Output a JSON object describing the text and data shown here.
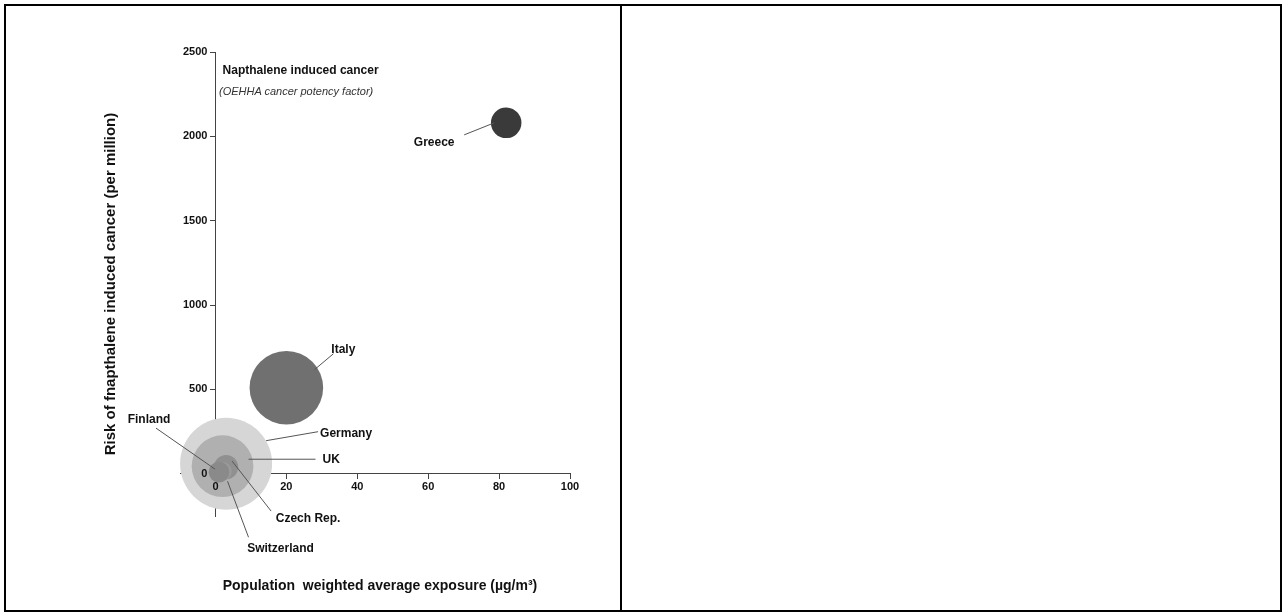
{
  "chart_data": {
    "type": "bubble",
    "title": "Napthalene induced cancer",
    "subtitle": "(OEHHA cancer potency factor)",
    "xlabel": "Population  weighted average exposure (µg/m³)",
    "ylabel": "Risk of fnapthalene induced cancer (per million)",
    "series": [
      {
        "name": "Greece",
        "color": "#3a3a3a",
        "x": [
          82
        ],
        "values": [
          2080
        ],
        "sizes": [
          0.11
        ]
      },
      {
        "name": "Italy",
        "color": "#707070",
        "x": [
          20
        ],
        "values": [
          510
        ],
        "sizes": [
          0.64
        ]
      },
      {
        "name": "Finland",
        "color": "#8a8a8a",
        "x": [
          1
        ],
        "values": [
          10
        ],
        "sizes": [
          0.05
        ]
      },
      {
        "name": "Switzerland",
        "color": "#9a9a9a",
        "x": [
          2
        ],
        "values": [
          15
        ],
        "sizes": [
          0.04
        ]
      },
      {
        "name": "Czech Rep.",
        "color": "#909090",
        "x": [
          3
        ],
        "values": [
          40
        ],
        "sizes": [
          0.07
        ]
      },
      {
        "name": "UK",
        "color": "#b0b0b0",
        "x": [
          2
        ],
        "values": [
          45
        ],
        "sizes": [
          0.45
        ]
      },
      {
        "name": "Germany",
        "color": "#d6d6d6",
        "x": [
          3
        ],
        "values": [
          60
        ],
        "sizes": [
          1
        ]
      }
    ],
    "xlim": [
      -10,
      100
    ],
    "ylim": [
      -250,
      2500
    ],
    "xticks": [
      0,
      20,
      40,
      60,
      80,
      100
    ],
    "yticks": [
      0,
      500,
      1000,
      1500,
      2000,
      2500
    ],
    "grid": false,
    "legend": false,
    "marker": "circle"
  }
}
